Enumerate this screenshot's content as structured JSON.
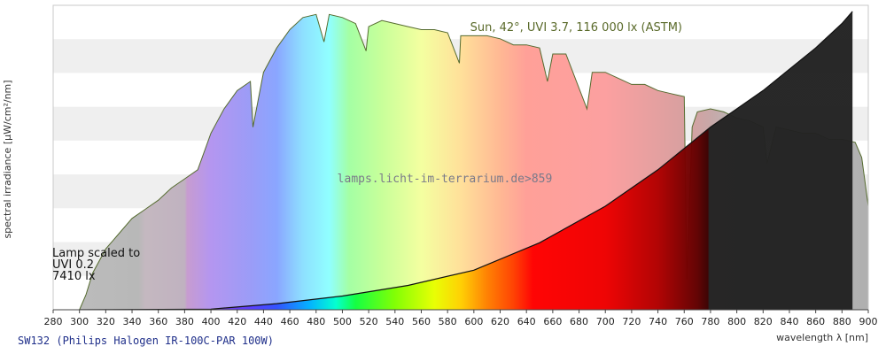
{
  "chart_data": {
    "type": "area",
    "title": "SW132 (Philips Halogen IR-100C-PAR 100W)",
    "xlabel": "wavelength λ [nm]",
    "ylabel": "spectral irradiance [µW/cm²/nm]",
    "xlim": [
      280,
      900
    ],
    "ylim": [
      0,
      1
    ],
    "x_ticks": [
      280,
      300,
      320,
      340,
      360,
      380,
      400,
      420,
      440,
      460,
      480,
      500,
      520,
      540,
      560,
      580,
      600,
      620,
      640,
      660,
      680,
      700,
      720,
      740,
      760,
      780,
      800,
      820,
      840,
      860,
      880,
      900
    ],
    "grid": "horizontal-bands",
    "watermark": "lamps.licht-im-terrarium.de>859",
    "series": [
      {
        "name": "Sun, 42°, UVI 3.7, 116 000 lx (ASTM)",
        "style": "spectral-rainbow-fill",
        "points": [
          [
            300,
            0
          ],
          [
            305,
            0.05
          ],
          [
            310,
            0.12
          ],
          [
            320,
            0.2
          ],
          [
            330,
            0.25
          ],
          [
            340,
            0.3
          ],
          [
            350,
            0.33
          ],
          [
            360,
            0.36
          ],
          [
            370,
            0.4
          ],
          [
            380,
            0.43
          ],
          [
            390,
            0.46
          ],
          [
            400,
            0.58
          ],
          [
            405,
            0.62
          ],
          [
            410,
            0.66
          ],
          [
            420,
            0.72
          ],
          [
            430,
            0.75
          ],
          [
            432,
            0.6
          ],
          [
            440,
            0.78
          ],
          [
            450,
            0.86
          ],
          [
            460,
            0.92
          ],
          [
            470,
            0.96
          ],
          [
            480,
            0.97
          ],
          [
            486,
            0.88
          ],
          [
            490,
            0.97
          ],
          [
            500,
            0.96
          ],
          [
            510,
            0.94
          ],
          [
            518,
            0.85
          ],
          [
            520,
            0.93
          ],
          [
            530,
            0.95
          ],
          [
            540,
            0.94
          ],
          [
            550,
            0.93
          ],
          [
            560,
            0.92
          ],
          [
            570,
            0.92
          ],
          [
            580,
            0.91
          ],
          [
            589,
            0.81
          ],
          [
            590,
            0.9
          ],
          [
            600,
            0.9
          ],
          [
            610,
            0.9
          ],
          [
            620,
            0.89
          ],
          [
            630,
            0.87
          ],
          [
            640,
            0.87
          ],
          [
            650,
            0.86
          ],
          [
            656,
            0.75
          ],
          [
            660,
            0.84
          ],
          [
            670,
            0.84
          ],
          [
            686,
            0.66
          ],
          [
            690,
            0.78
          ],
          [
            700,
            0.78
          ],
          [
            710,
            0.76
          ],
          [
            720,
            0.74
          ],
          [
            730,
            0.74
          ],
          [
            740,
            0.72
          ],
          [
            750,
            0.71
          ],
          [
            760,
            0.7
          ],
          [
            762,
            0.1
          ],
          [
            766,
            0.6
          ],
          [
            770,
            0.65
          ],
          [
            780,
            0.66
          ],
          [
            790,
            0.65
          ],
          [
            800,
            0.63
          ],
          [
            810,
            0.62
          ],
          [
            820,
            0.6
          ],
          [
            823,
            0.48
          ],
          [
            830,
            0.6
          ],
          [
            840,
            0.59
          ],
          [
            850,
            0.58
          ],
          [
            860,
            0.58
          ],
          [
            870,
            0.56
          ],
          [
            880,
            0.56
          ],
          [
            890,
            0.55
          ],
          [
            895,
            0.5
          ],
          [
            900,
            0.34
          ]
        ]
      },
      {
        "name": "Lamp scaled to UVI 0.2 7410 lx",
        "style": "color-filled-black-overlay",
        "points": [
          [
            300,
            0
          ],
          [
            400,
            0.002
          ],
          [
            450,
            0.02
          ],
          [
            500,
            0.045
          ],
          [
            550,
            0.08
          ],
          [
            600,
            0.13
          ],
          [
            650,
            0.22
          ],
          [
            700,
            0.34
          ],
          [
            720,
            0.4
          ],
          [
            740,
            0.46
          ],
          [
            760,
            0.53
          ],
          [
            780,
            0.6
          ],
          [
            800,
            0.66
          ],
          [
            820,
            0.72
          ],
          [
            840,
            0.79
          ],
          [
            860,
            0.86
          ],
          [
            880,
            0.94
          ],
          [
            888,
            0.98
          ]
        ]
      }
    ]
  }
}
